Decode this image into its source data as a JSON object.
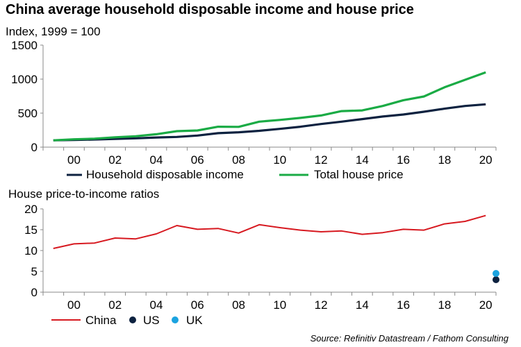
{
  "title": "China average household disposable income and house price",
  "source": "Source: Refinitiv Datastream / Fathom Consulting",
  "chart_data": [
    {
      "type": "line",
      "subtitle": "Index, 1999 = 100",
      "x": [
        1999.5,
        2000.5,
        2001.5,
        2002.5,
        2003.5,
        2004.5,
        2005.5,
        2006.5,
        2007.5,
        2008.5,
        2009.5,
        2010.5,
        2011.5,
        2012.5,
        2013.5,
        2014.5,
        2015.5,
        2016.5,
        2017.5,
        2018.5,
        2019.5,
        2020.5
      ],
      "x_ticks": [
        "00",
        "02",
        "04",
        "06",
        "08",
        "10",
        "12",
        "14",
        "16",
        "18",
        "20"
      ],
      "ylim": [
        0,
        1500
      ],
      "y_ticks": [
        "0",
        "500",
        "1000",
        "1500"
      ],
      "legend_position": "bottom",
      "series": [
        {
          "name": "Household disposable income",
          "color": "#0d2240",
          "values": [
            100,
            105,
            112,
            120,
            130,
            142,
            150,
            170,
            205,
            218,
            240,
            268,
            300,
            340,
            375,
            412,
            450,
            480,
            520,
            565,
            605,
            630
          ]
        },
        {
          "name": "Total house price",
          "color": "#1aab45",
          "values": [
            100,
            115,
            125,
            145,
            160,
            190,
            235,
            245,
            300,
            298,
            375,
            400,
            430,
            465,
            530,
            540,
            605,
            690,
            745,
            880,
            990,
            1100
          ]
        }
      ]
    },
    {
      "type": "line",
      "subtitle": "House price-to-income ratios",
      "x": [
        1999.5,
        2000.5,
        2001.5,
        2002.5,
        2003.5,
        2004.5,
        2005.5,
        2006.5,
        2007.5,
        2008.5,
        2009.5,
        2010.5,
        2011.5,
        2012.5,
        2013.5,
        2014.5,
        2015.5,
        2016.5,
        2017.5,
        2018.5,
        2019.5,
        2020.5
      ],
      "x_ticks": [
        "00",
        "02",
        "04",
        "06",
        "08",
        "10",
        "12",
        "14",
        "16",
        "18",
        "20"
      ],
      "ylim": [
        0,
        20
      ],
      "y_ticks": [
        "0",
        "5",
        "10",
        "15",
        "20"
      ],
      "legend_position": "bottom",
      "series": [
        {
          "name": "China",
          "color": "#d71920",
          "values": [
            10.5,
            11.6,
            11.8,
            13.0,
            12.8,
            14.0,
            16.0,
            15.1,
            15.3,
            14.2,
            16.2,
            15.5,
            14.9,
            14.5,
            14.7,
            13.9,
            14.3,
            15.1,
            14.9,
            16.4,
            17.0,
            18.4
          ]
        }
      ],
      "points": [
        {
          "name": "US",
          "color": "#0d2240",
          "x": 2021.0,
          "y": 3.0
        },
        {
          "name": "UK",
          "color": "#1ba3e0",
          "x": 2021.0,
          "y": 4.5
        }
      ]
    }
  ]
}
